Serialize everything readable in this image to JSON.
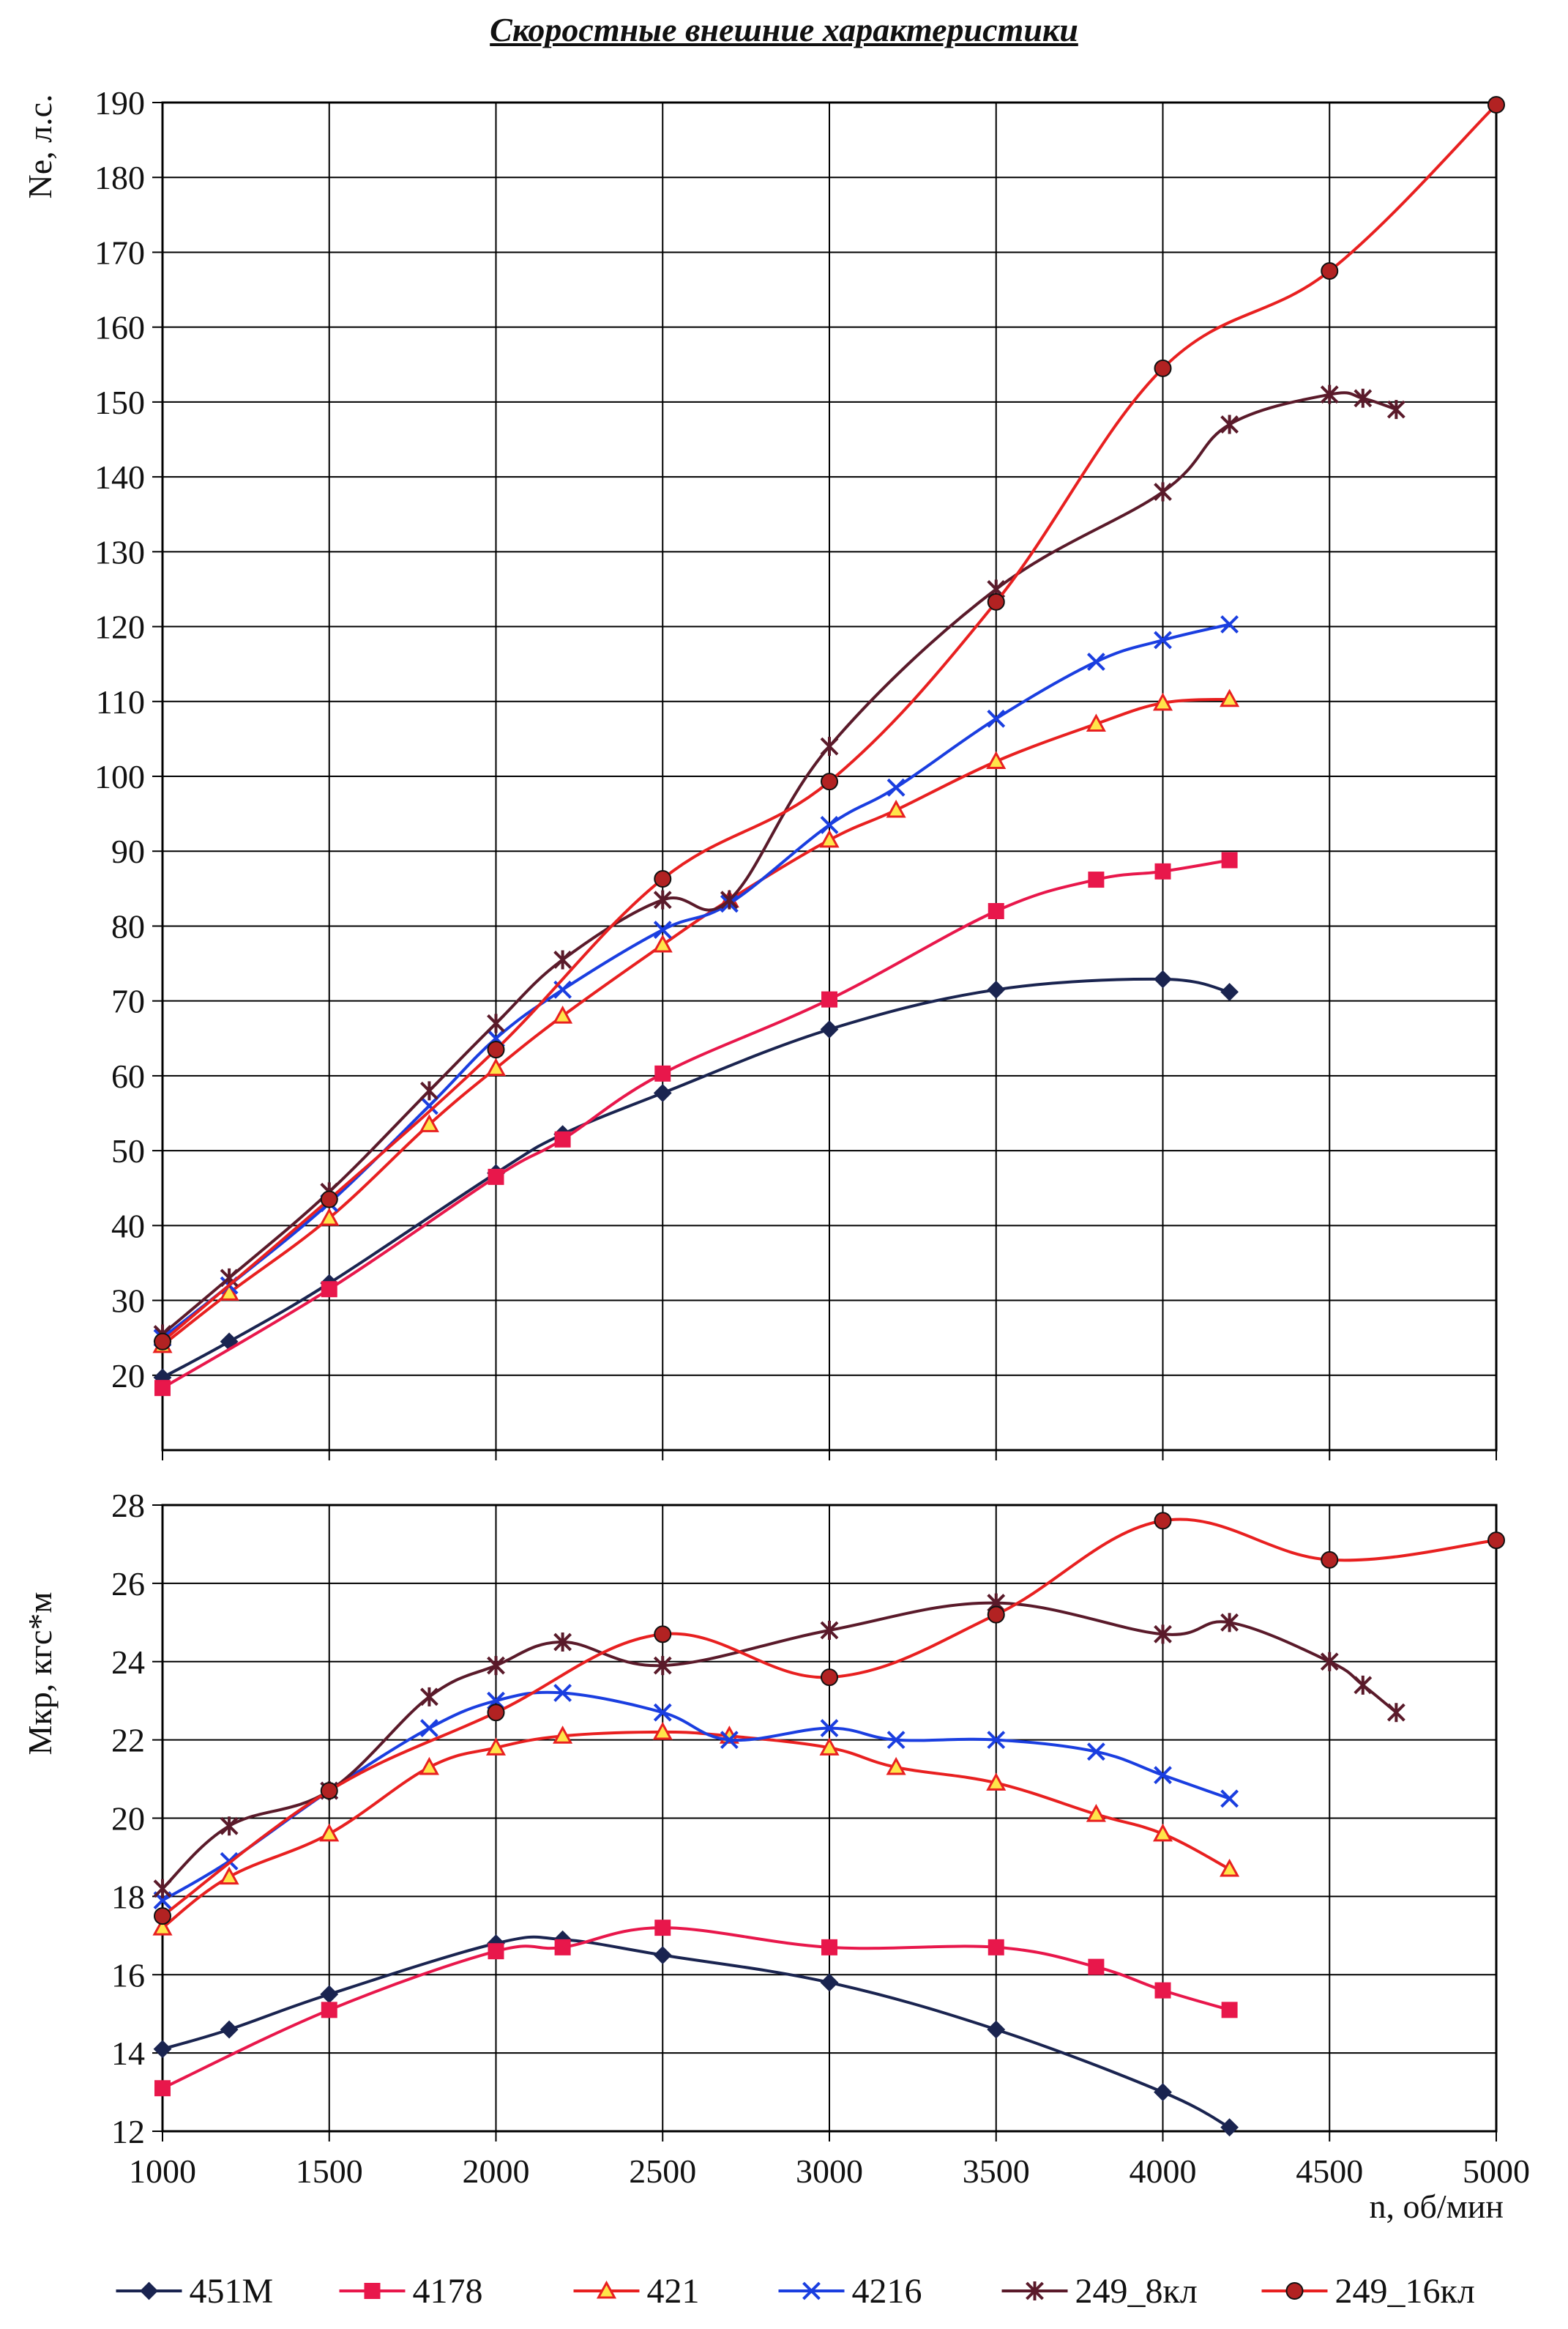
{
  "title": "Скоростные внешние характеристики",
  "chart_data": [
    {
      "id": "power",
      "type": "line",
      "title": "",
      "xlabel": "",
      "ylabel": "Ne, л.с.",
      "xlim": [
        1000,
        5000
      ],
      "ylim": [
        10,
        190
      ],
      "xticks": [
        1000,
        1500,
        2000,
        2500,
        3000,
        3500,
        4000,
        4500,
        5000
      ],
      "yticks": [
        20,
        30,
        40,
        50,
        60,
        70,
        80,
        90,
        100,
        110,
        120,
        130,
        140,
        150,
        160,
        170,
        180,
        190
      ],
      "grid": true,
      "series": [
        {
          "name": "451М",
          "color": "#1a2450",
          "marker": "diamond",
          "x": [
            1000,
            1200,
            1500,
            2000,
            2200,
            2500,
            3000,
            3500,
            4000,
            4200
          ],
          "y": [
            19.7,
            24.5,
            32.3,
            47.0,
            52.2,
            57.7,
            66.2,
            71.5,
            72.9,
            71.2
          ]
        },
        {
          "name": "4178",
          "color": "#e8174b",
          "marker": "square",
          "x": [
            1000,
            1500,
            2000,
            2200,
            2500,
            3000,
            3500,
            3800,
            4000,
            4200
          ],
          "y": [
            18.3,
            31.5,
            46.5,
            51.5,
            60.3,
            70.2,
            82.0,
            86.2,
            87.3,
            88.8
          ]
        },
        {
          "name": "421",
          "color": "#e82020",
          "marker": "triangle",
          "x": [
            1000,
            1200,
            1500,
            1800,
            2000,
            2200,
            2500,
            2700,
            3000,
            3200,
            3500,
            3800,
            4000,
            4200
          ],
          "y": [
            24.0,
            31.0,
            41.0,
            53.5,
            61.0,
            68.0,
            77.5,
            83.5,
            91.5,
            95.5,
            102.0,
            107.0,
            109.8,
            110.3
          ]
        },
        {
          "name": "4216",
          "color": "#1a3ee0",
          "marker": "x",
          "x": [
            1000,
            1200,
            1500,
            1800,
            2000,
            2200,
            2500,
            2700,
            3000,
            3200,
            3500,
            3800,
            4000,
            4200
          ],
          "y": [
            25.0,
            32.0,
            43.0,
            56.0,
            65.0,
            71.5,
            79.5,
            83.0,
            93.5,
            98.5,
            107.7,
            115.3,
            118.2,
            120.3
          ]
        },
        {
          "name": "249_8кл",
          "color": "#5a1a2a",
          "marker": "asterisk",
          "x": [
            1000,
            1200,
            1500,
            1800,
            2000,
            2200,
            2500,
            2700,
            3000,
            3500,
            4000,
            4200,
            4500,
            4600,
            4700
          ],
          "y": [
            25.5,
            33.0,
            44.5,
            58.0,
            67.0,
            75.5,
            83.5,
            83.5,
            104.0,
            125.0,
            138.0,
            147.0,
            151.0,
            150.5,
            149.0
          ]
        },
        {
          "name": "249_16кл",
          "color": "#e82020",
          "marker": "circle",
          "x": [
            1000,
            1500,
            2000,
            2500,
            3000,
            3500,
            4000,
            4500,
            5000
          ],
          "y": [
            24.5,
            43.5,
            63.5,
            86.3,
            99.3,
            123.3,
            154.5,
            167.5,
            189.7
          ]
        }
      ]
    },
    {
      "id": "torque",
      "type": "line",
      "title": "",
      "xlabel": "n, об/мин",
      "ylabel": "Мкр, кгс*м",
      "xlim": [
        1000,
        5000
      ],
      "ylim": [
        12,
        28
      ],
      "xticks": [
        1000,
        1500,
        2000,
        2500,
        3000,
        3500,
        4000,
        4500,
        5000
      ],
      "yticks": [
        12,
        14,
        16,
        18,
        20,
        22,
        24,
        26,
        28
      ],
      "grid": true,
      "series": [
        {
          "name": "451М",
          "color": "#1a2450",
          "marker": "diamond",
          "x": [
            1000,
            1200,
            1500,
            2000,
            2200,
            2500,
            3000,
            3500,
            4000,
            4200
          ],
          "y": [
            14.1,
            14.6,
            15.5,
            16.8,
            16.9,
            16.5,
            15.8,
            14.6,
            13.0,
            12.1
          ]
        },
        {
          "name": "4178",
          "color": "#e8174b",
          "marker": "square",
          "x": [
            1000,
            1500,
            2000,
            2200,
            2500,
            3000,
            3500,
            3800,
            4000,
            4200
          ],
          "y": [
            13.1,
            15.1,
            16.6,
            16.7,
            17.2,
            16.7,
            16.7,
            16.2,
            15.6,
            15.1
          ]
        },
        {
          "name": "421",
          "color": "#e82020",
          "marker": "triangle",
          "x": [
            1000,
            1200,
            1500,
            1800,
            2000,
            2200,
            2500,
            2700,
            3000,
            3200,
            3500,
            3800,
            4000,
            4200
          ],
          "y": [
            17.2,
            18.5,
            19.6,
            21.3,
            21.8,
            22.1,
            22.2,
            22.1,
            21.8,
            21.3,
            20.9,
            20.1,
            19.6,
            18.7
          ]
        },
        {
          "name": "4216",
          "color": "#1a3ee0",
          "marker": "x",
          "x": [
            1000,
            1200,
            1500,
            1800,
            2000,
            2200,
            2500,
            2700,
            3000,
            3200,
            3500,
            3800,
            4000,
            4200
          ],
          "y": [
            17.9,
            18.9,
            20.7,
            22.3,
            23.0,
            23.2,
            22.7,
            22.0,
            22.3,
            22.0,
            22.0,
            21.7,
            21.1,
            20.5
          ]
        },
        {
          "name": "249_8кл",
          "color": "#5a1a2a",
          "marker": "asterisk",
          "x": [
            1000,
            1200,
            1500,
            1800,
            2000,
            2200,
            2500,
            3000,
            3500,
            4000,
            4200,
            4500,
            4600,
            4700
          ],
          "y": [
            18.2,
            19.8,
            20.7,
            23.1,
            23.9,
            24.5,
            23.9,
            24.8,
            25.5,
            24.7,
            25.0,
            24.0,
            23.4,
            22.7
          ]
        },
        {
          "name": "249_16кл",
          "color": "#e82020",
          "marker": "circle",
          "x": [
            1000,
            1500,
            2000,
            2500,
            3000,
            3500,
            4000,
            4500,
            5000
          ],
          "y": [
            17.5,
            20.7,
            22.7,
            24.7,
            23.6,
            25.2,
            27.6,
            26.6,
            27.1
          ]
        }
      ]
    }
  ],
  "legend": {
    "placement": "bottom",
    "items": [
      "451М",
      "4178",
      "421",
      "4216",
      "249_8кл",
      "249_16кл"
    ]
  }
}
